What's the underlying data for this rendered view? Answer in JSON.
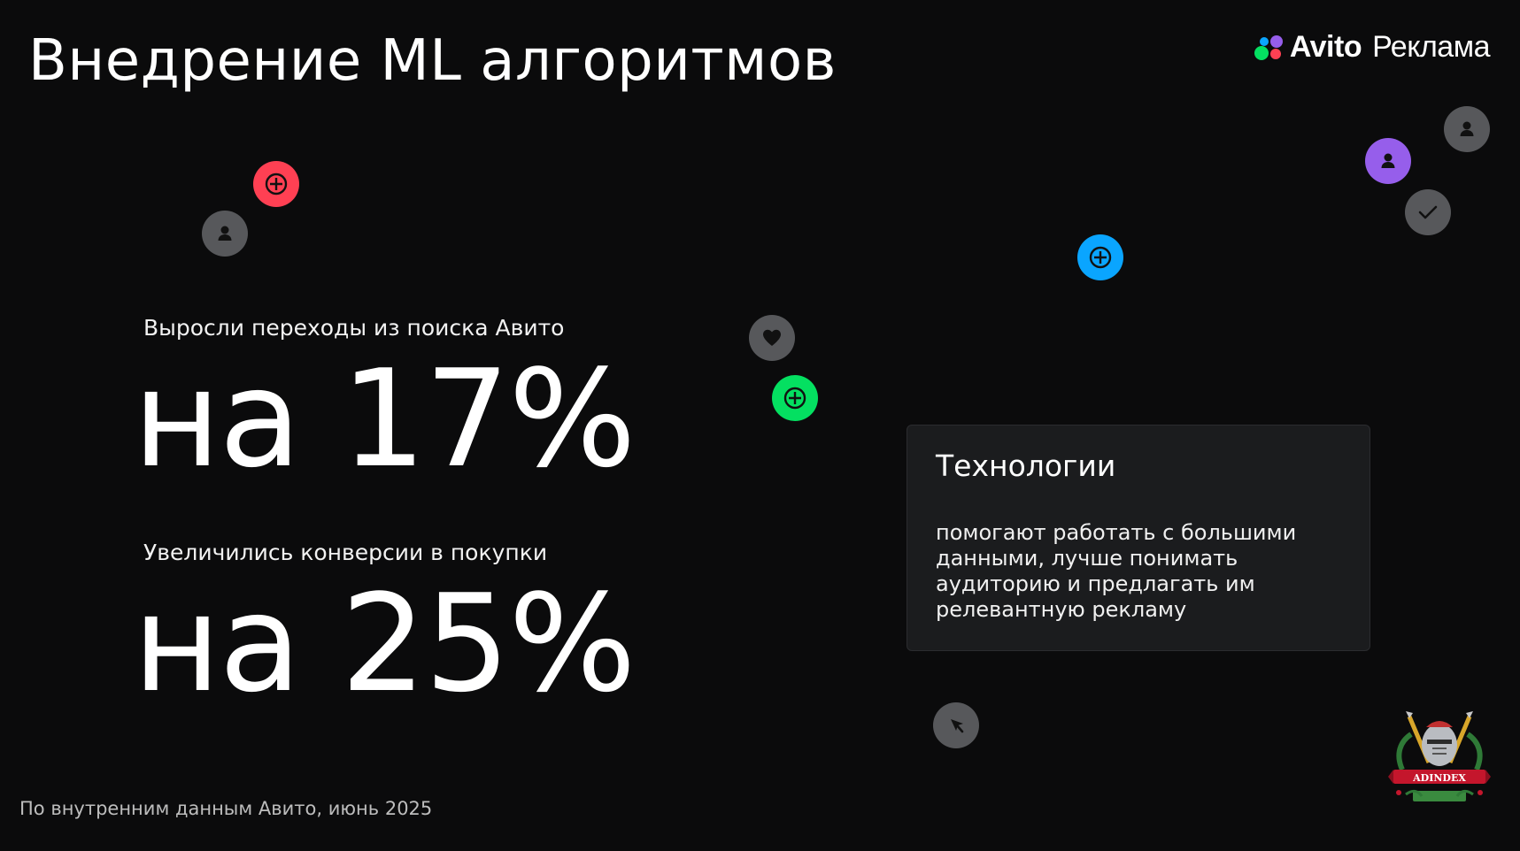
{
  "header": {
    "title": "Внедрение ML алгоритмов"
  },
  "brand": {
    "name": "Avito",
    "product": "Реклама",
    "dot_colors": [
      "#965eeb",
      "#0aa5ff",
      "#04e061",
      "#ff4053"
    ]
  },
  "stats": [
    {
      "label": "Выросли переходы из поиска Авито",
      "value": "на 17%"
    },
    {
      "label": "Увеличились конверсии в покупки",
      "value": "на 25%"
    }
  ],
  "tech_card": {
    "title": "Технологии",
    "body": "помогают работать с большими данными, лучше понимать аудиторию и предлагать им релевантную рекламу"
  },
  "footnote": "По внутренним данным Авито, июнь 2025",
  "colors": {
    "background": "#0b0b0c",
    "card": "#1b1c1e",
    "red": "#ff4053",
    "blue": "#0aa5ff",
    "green": "#04e061",
    "purple": "#965eeb",
    "gray": "#57585b"
  },
  "floating_icons": [
    "plus-icon",
    "user-icon",
    "heart-icon",
    "check-icon",
    "cursor-icon"
  ],
  "badge": {
    "text": "ADINDEX"
  }
}
